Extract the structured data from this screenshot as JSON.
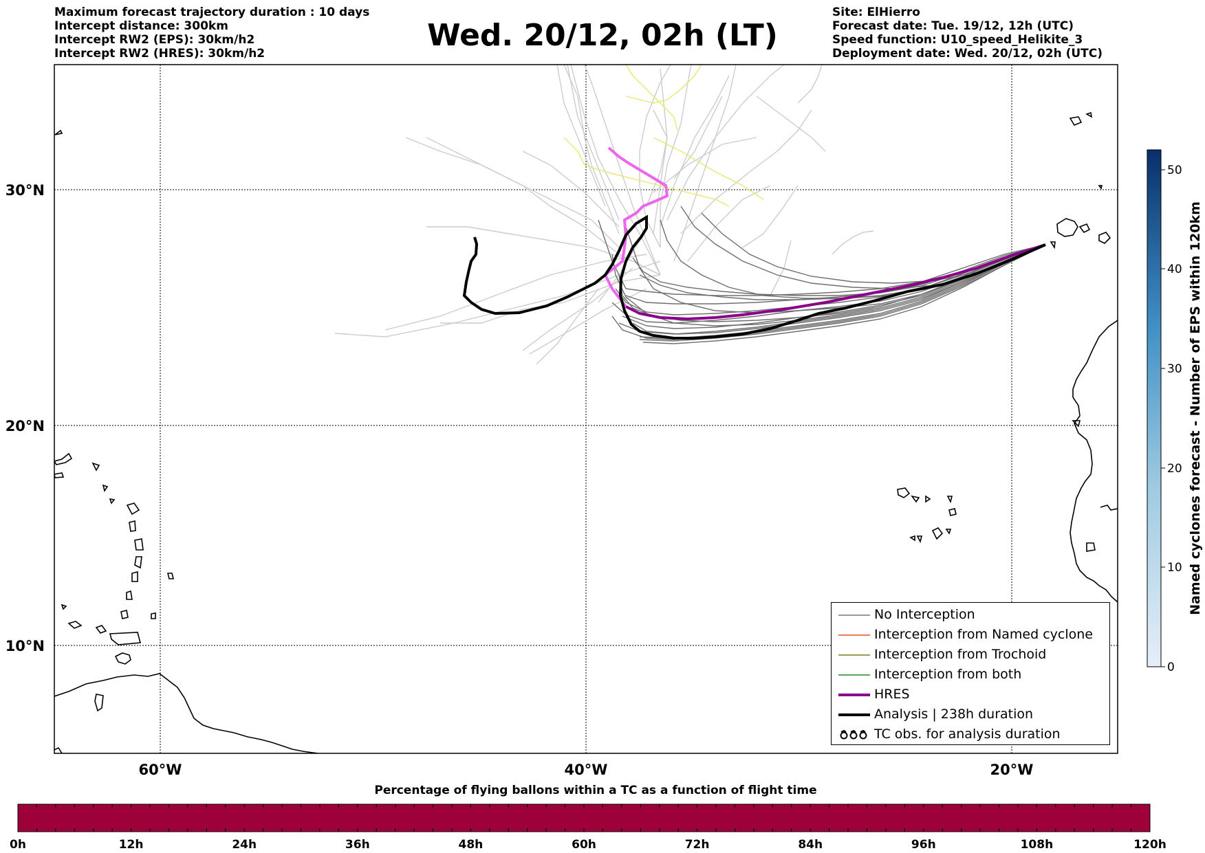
{
  "header": {
    "left": [
      "Maximum forecast trajectory duration : 10 days",
      "Intercept distance: 300km",
      "Intercept RW2 (EPS):  30km/h2",
      "Intercept RW2 (HRES): 30km/h2"
    ],
    "title": "Wed. 20/12, 02h (LT)",
    "right": [
      "Site: ElHierro",
      "Forecast date: Tue. 19/12, 12h (UTC)",
      "Speed function: U10_speed_Helikite_3",
      "Deployment date: Wed. 20/12, 02h (UTC)"
    ]
  },
  "map": {
    "lat_labels": [
      "30°N",
      "20°N",
      "10°N"
    ],
    "lon_labels": [
      "60°W",
      "40°W",
      "20°W"
    ],
    "extent": {
      "lon": [
        -65,
        -15
      ],
      "lat": [
        5.3,
        34.5
      ]
    }
  },
  "legend": {
    "items": [
      {
        "label": "No Interception",
        "color": "#777777",
        "style": "thin"
      },
      {
        "label": "Interception from Named cyclone",
        "color": "#e8501a",
        "style": "thin"
      },
      {
        "label": "Interception from Trochoid",
        "color": "#7a7a1a",
        "style": "thin"
      },
      {
        "label": "Interception from both",
        "color": "#1f8a1f",
        "style": "thin"
      },
      {
        "label": "HRES",
        "color": "#8b008b",
        "style": "thick"
      },
      {
        "label": "Analysis | 238h duration",
        "color": "#000000",
        "style": "thick"
      },
      {
        "label": "TC obs. for analysis duration",
        "color": "#000000",
        "style": "symbol"
      }
    ]
  },
  "colorbar_right": {
    "label": "Named cyclones forecast - Number of EPS within 120km",
    "ticks": [
      "0",
      "10",
      "20",
      "30",
      "40",
      "50"
    ],
    "range": [
      0,
      52
    ],
    "color_low": "#e6eef8",
    "color_high": "#08306b"
  },
  "colorbar_bottom": {
    "title": "Percentage of flying ballons within a TC as a function of flight time",
    "ticks": [
      "0h",
      "12h",
      "24h",
      "36h",
      "48h",
      "60h",
      "72h",
      "84h",
      "96h",
      "108h",
      "120h"
    ],
    "fill_color": "#9e003a"
  },
  "tracks": {
    "hres_color": "#8b008b",
    "hres_early_color": "#ee66ee",
    "analysis_color": "#000000",
    "ensemble_colors": [
      "#cccccc",
      "#6e6e6e",
      "#e8e870"
    ]
  }
}
